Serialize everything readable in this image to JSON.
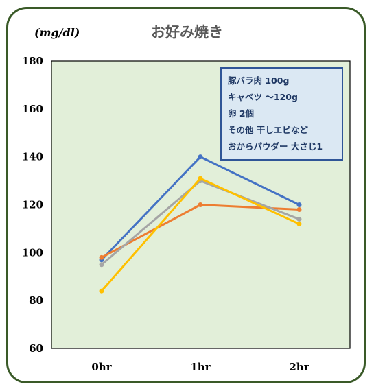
{
  "chart_data": {
    "type": "line",
    "title": "お好み焼き",
    "ylabel": "(mg/dl)",
    "categories": [
      "0hr",
      "1hr",
      "2hr"
    ],
    "ylim": [
      60,
      180
    ],
    "yticks": [
      60,
      80,
      100,
      120,
      140,
      160,
      180
    ],
    "grid": false,
    "series": [
      {
        "color": "#4472c4",
        "values": [
          97,
          140,
          120
        ]
      },
      {
        "color": "#ed7d31",
        "values": [
          98,
          120,
          118
        ]
      },
      {
        "color": "#a5a5a5",
        "values": [
          95,
          130,
          114
        ]
      },
      {
        "color": "#ffc000",
        "values": [
          84,
          131,
          112
        ]
      }
    ],
    "annotation": {
      "lines": [
        "豚バラ肉 100g",
        "キャベツ ～120g",
        "卵 2個",
        "その他 干しエビなど",
        "おからパウダー 大さじ1"
      ]
    }
  }
}
